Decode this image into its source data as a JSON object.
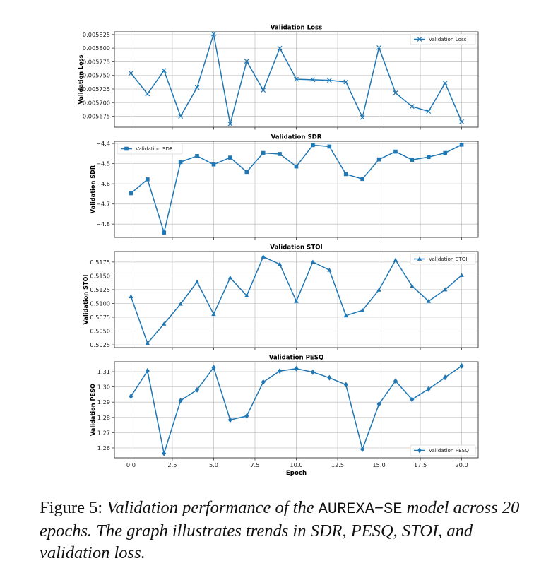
{
  "figure": {
    "caption_label": "Figure 5:",
    "caption_part1": "Validation performance of the",
    "caption_model": "AUREXA−SE",
    "caption_part2": "model across 20 epochs. The graph illustrates trends in SDR, PESQ, STOI, and validation loss."
  },
  "chart_data": [
    {
      "type": "line",
      "title": "Validation Loss",
      "xlabel": "",
      "ylabel": "Validation Loss",
      "legend": "Validation Loss",
      "legend_position": "top-right",
      "marker": "x",
      "color": "#1f77b4",
      "grid": true,
      "x": [
        0,
        1,
        2,
        3,
        4,
        5,
        6,
        7,
        8,
        9,
        10,
        11,
        12,
        13,
        14,
        15,
        16,
        17,
        18,
        19,
        20
      ],
      "y": [
        0.005754,
        0.005716,
        0.005759,
        0.005675,
        0.005728,
        0.005826,
        0.005661,
        0.005776,
        0.005723,
        0.0058,
        0.005743,
        0.005742,
        0.005741,
        0.005738,
        0.005673,
        0.005801,
        0.005718,
        0.005693,
        0.005684,
        0.005736,
        0.005665
      ],
      "ylim": [
        0.005655,
        0.00583
      ],
      "yticks": [
        0.005675,
        0.0057,
        0.005725,
        0.00575,
        0.005775,
        0.0058,
        0.005825
      ],
      "ytick_labels": [
        "0.005675",
        "0.005700",
        "0.005725",
        "0.005750",
        "0.005775",
        "0.005800",
        "0.005825"
      ],
      "xlim": [
        -1.0,
        21.0
      ],
      "xticks": [
        0.0,
        2.5,
        5.0,
        7.5,
        10.0,
        12.5,
        15.0,
        17.5,
        20.0
      ],
      "xtick_labels": []
    },
    {
      "type": "line",
      "title": "Validation SDR",
      "xlabel": "",
      "ylabel": "Validation SDR",
      "legend": "Validation SDR",
      "legend_position": "top-left",
      "marker": "square",
      "color": "#1f77b4",
      "grid": true,
      "x": [
        0,
        1,
        2,
        3,
        4,
        5,
        6,
        7,
        8,
        9,
        10,
        11,
        12,
        13,
        14,
        15,
        16,
        17,
        18,
        19,
        20
      ],
      "y": [
        -4.647,
        -4.578,
        -4.842,
        -4.492,
        -4.462,
        -4.504,
        -4.47,
        -4.541,
        -4.447,
        -4.452,
        -4.514,
        -4.408,
        -4.415,
        -4.552,
        -4.576,
        -4.479,
        -4.44,
        -4.481,
        -4.467,
        -4.447,
        -4.406
      ],
      "ylim": [
        -4.866,
        -4.389
      ],
      "yticks": [
        -4.8,
        -4.7,
        -4.6,
        -4.5,
        -4.4
      ],
      "ytick_labels": [
        "−4.8",
        "−4.7",
        "−4.6",
        "−4.5",
        "−4.4"
      ],
      "xlim": [
        -1.0,
        21.0
      ],
      "xticks": [
        0.0,
        2.5,
        5.0,
        7.5,
        10.0,
        12.5,
        15.0,
        17.5,
        20.0
      ],
      "xtick_labels": []
    },
    {
      "type": "line",
      "title": "Validation STOI",
      "xlabel": "",
      "ylabel": "Validation STOI",
      "legend": "Validation STOI",
      "legend_position": "top-right",
      "marker": "triangle",
      "color": "#1f77b4",
      "grid": true,
      "x": [
        0,
        1,
        2,
        3,
        4,
        5,
        6,
        7,
        8,
        9,
        10,
        11,
        12,
        13,
        14,
        15,
        16,
        17,
        18,
        19,
        20
      ],
      "y": [
        0.51125,
        0.5028,
        0.5063,
        0.5099,
        0.5139,
        0.50805,
        0.51465,
        0.5114,
        0.51845,
        0.5171,
        0.5104,
        0.5175,
        0.51605,
        0.5078,
        0.50875,
        0.51245,
        0.51785,
        0.51315,
        0.5104,
        0.5125,
        0.5151
      ],
      "ylim": [
        0.502,
        0.5194
      ],
      "yticks": [
        0.5025,
        0.505,
        0.5075,
        0.51,
        0.5125,
        0.515,
        0.5175
      ],
      "ytick_labels": [
        "0.5025",
        "0.5050",
        "0.5075",
        "0.5100",
        "0.5125",
        "0.5150",
        "0.5175"
      ],
      "xlim": [
        -1.0,
        21.0
      ],
      "xticks": [
        0.0,
        2.5,
        5.0,
        7.5,
        10.0,
        12.5,
        15.0,
        17.5,
        20.0
      ],
      "xtick_labels": []
    },
    {
      "type": "line",
      "title": "Validation PESQ",
      "xlabel": "Epoch",
      "ylabel": "Validation PESQ",
      "legend": "Validation PESQ",
      "legend_position": "bottom-right",
      "marker": "diamond",
      "color": "#1f77b4",
      "grid": true,
      "x": [
        0,
        1,
        2,
        3,
        4,
        5,
        6,
        7,
        8,
        9,
        10,
        11,
        12,
        13,
        14,
        15,
        16,
        17,
        18,
        19,
        20
      ],
      "y": [
        1.2938,
        1.3105,
        1.2564,
        1.291,
        1.2981,
        1.3127,
        1.2784,
        1.2809,
        1.3032,
        1.3104,
        1.312,
        1.3097,
        1.306,
        1.3015,
        1.2591,
        1.2887,
        1.3039,
        1.2918,
        1.2986,
        1.3062,
        1.3138
      ],
      "ylim": [
        1.2535,
        1.3165
      ],
      "yticks": [
        1.26,
        1.27,
        1.28,
        1.29,
        1.3,
        1.31
      ],
      "ytick_labels": [
        "1.26",
        "1.27",
        "1.28",
        "1.29",
        "1.30",
        "1.31"
      ],
      "xlim": [
        -1.0,
        21.0
      ],
      "xticks": [
        0.0,
        2.5,
        5.0,
        7.5,
        10.0,
        12.5,
        15.0,
        17.5,
        20.0
      ],
      "xtick_labels": [
        "0.0",
        "2.5",
        "5.0",
        "7.5",
        "10.0",
        "12.5",
        "15.0",
        "17.5",
        "20.0"
      ]
    }
  ]
}
